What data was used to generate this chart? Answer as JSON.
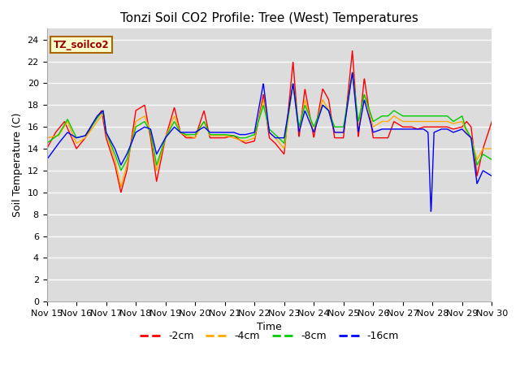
{
  "title": "Tonzi Soil CO2 Profile: Tree (West) Temperatures",
  "xlabel": "Time",
  "ylabel": "Soil Temperature (C)",
  "ylim": [
    0,
    25
  ],
  "yticks": [
    0,
    2,
    4,
    6,
    8,
    10,
    12,
    14,
    16,
    18,
    20,
    22,
    24
  ],
  "x_labels": [
    "Nov 15",
    "Nov 16",
    "Nov 17",
    "Nov 18",
    "Nov 19",
    "Nov 20",
    "Nov 21",
    "Nov 22",
    "Nov 23",
    "Nov 24",
    "Nov 25",
    "Nov 26",
    "Nov 27",
    "Nov 28",
    "Nov 29",
    "Nov 30"
  ],
  "legend_label": "TZ_soilco2",
  "series_labels": [
    "-2cm",
    "-4cm",
    "-8cm",
    "-16cm"
  ],
  "series_colors": [
    "#ff0000",
    "#ffaa00",
    "#00cc00",
    "#0000ff"
  ],
  "background_color": "#dcdcdc",
  "title_fontsize": 11,
  "axis_fontsize": 9,
  "tick_fontsize": 8,
  "linewidth": 1.0
}
